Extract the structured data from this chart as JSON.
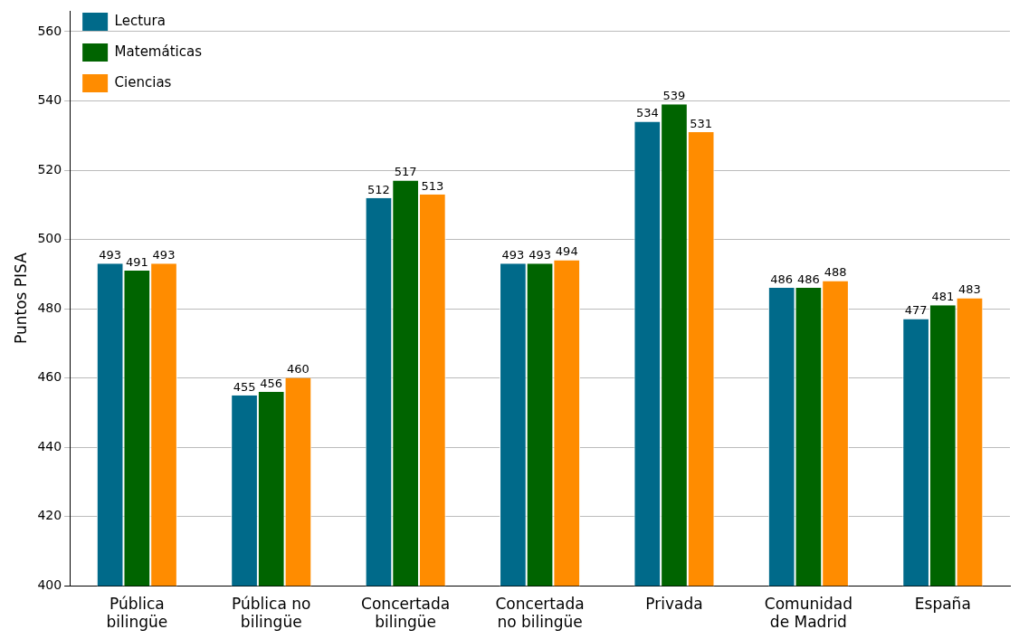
{
  "chart_data": {
    "type": "bar",
    "ylabel": "Puntos PISA",
    "categories": [
      "Pública bilingüe",
      "Pública no bilingüe",
      "Concertada bilingüe",
      "Concertada no bilingüe",
      "Privada",
      "Comunidad de Madrid",
      "España"
    ],
    "series": [
      {
        "name": "Lectura",
        "color": "#006a8a",
        "values": [
          493,
          455,
          512,
          493,
          534,
          486,
          477
        ]
      },
      {
        "name": "Matemáticas",
        "color": "#006400",
        "values": [
          491,
          456,
          517,
          493,
          539,
          486,
          481
        ]
      },
      {
        "name": "Ciencias",
        "color": "#ff8c00",
        "values": [
          493,
          460,
          513,
          494,
          531,
          488,
          483
        ]
      }
    ],
    "ylim": [
      400,
      566
    ],
    "yticks": [
      400,
      420,
      440,
      460,
      480,
      500,
      520,
      540,
      560
    ],
    "grid": "y",
    "legend": "top left",
    "data_labels": true
  }
}
